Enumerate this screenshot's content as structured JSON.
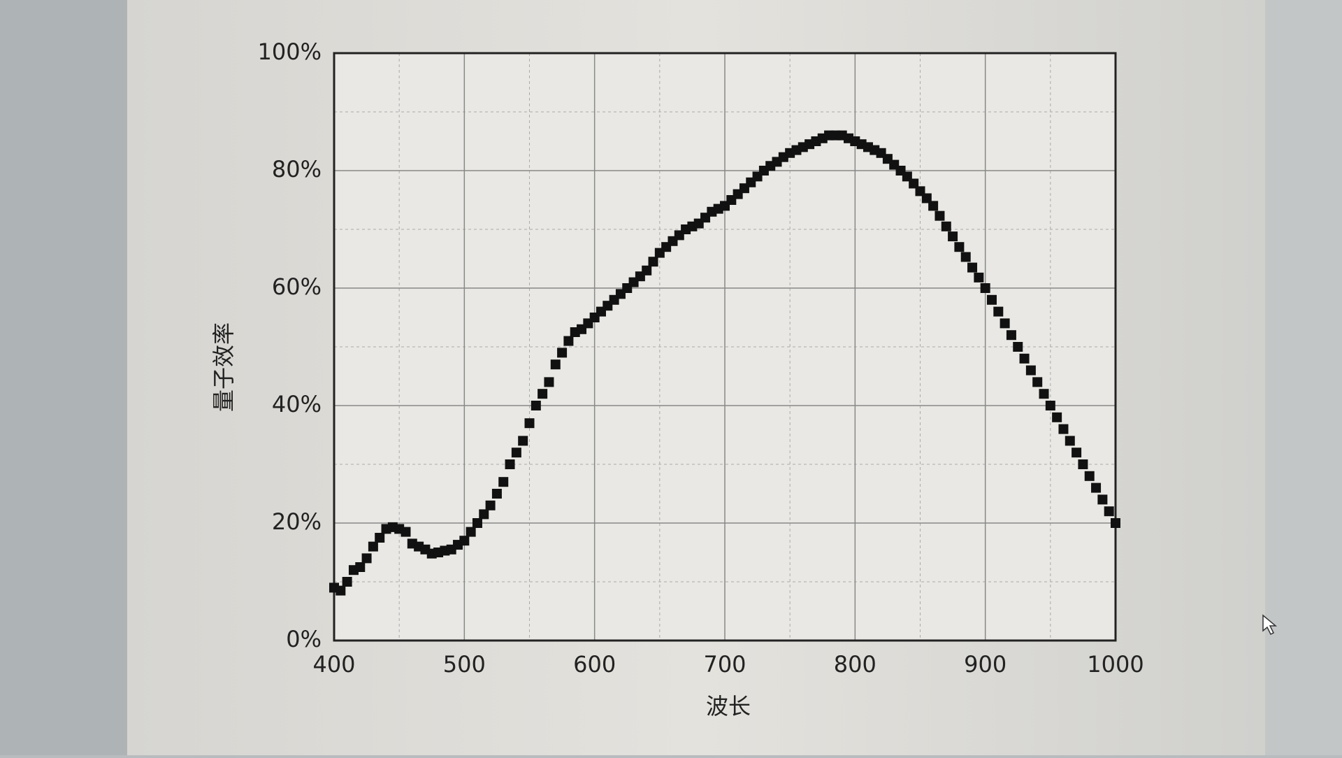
{
  "chart_data": {
    "type": "scatter",
    "x_label": "波长",
    "y_label": "量子效率",
    "x": [
      400,
      405,
      410,
      415,
      420,
      425,
      430,
      435,
      440,
      445,
      450,
      455,
      460,
      465,
      470,
      475,
      480,
      485,
      490,
      495,
      500,
      505,
      510,
      515,
      520,
      525,
      530,
      535,
      540,
      545,
      550,
      555,
      560,
      565,
      570,
      575,
      580,
      585,
      590,
      595,
      600,
      605,
      610,
      615,
      620,
      625,
      630,
      635,
      640,
      645,
      650,
      655,
      660,
      665,
      670,
      675,
      680,
      685,
      690,
      695,
      700,
      705,
      710,
      715,
      720,
      725,
      730,
      735,
      740,
      745,
      750,
      755,
      760,
      765,
      770,
      775,
      780,
      785,
      790,
      795,
      800,
      805,
      810,
      815,
      820,
      825,
      830,
      835,
      840,
      845,
      850,
      855,
      860,
      865,
      870,
      875,
      880,
      885,
      890,
      895,
      900,
      905,
      910,
      915,
      920,
      925,
      930,
      935,
      940,
      945,
      950,
      955,
      960,
      965,
      970,
      975,
      980,
      985,
      990,
      995,
      1000
    ],
    "values": [
      9,
      8.5,
      10,
      12,
      12.5,
      14,
      16,
      17.5,
      19,
      19.3,
      19,
      18.5,
      16.5,
      16,
      15.5,
      14.8,
      15,
      15.3,
      15.5,
      16.3,
      17,
      18.5,
      20,
      21.5,
      23,
      25,
      27,
      30,
      32,
      34,
      37,
      40,
      42,
      44,
      47,
      49,
      51,
      52.5,
      53,
      54,
      55,
      56,
      57,
      58,
      59,
      60,
      61,
      62,
      63,
      64.5,
      66,
      67,
      68,
      69,
      70,
      70.5,
      71,
      72,
      73,
      73.5,
      74,
      75,
      76,
      77,
      78,
      79,
      80,
      80.8,
      81.5,
      82.3,
      83,
      83.5,
      84,
      84.5,
      85,
      85.5,
      86,
      86,
      86,
      85.5,
      85,
      84.5,
      84,
      83.5,
      83,
      82,
      81,
      80,
      79,
      77.8,
      76.5,
      75.3,
      74,
      72.3,
      70.5,
      68.8,
      67,
      65.3,
      63.5,
      61.8,
      60,
      58,
      56,
      54,
      52,
      50,
      48,
      46,
      44,
      42,
      40,
      38,
      36,
      34,
      32,
      30,
      28,
      26,
      24,
      22,
      20
    ],
    "color": "#111111",
    "xlim": [
      400,
      1000
    ],
    "xticks": [
      400,
      500,
      600,
      700,
      800,
      900,
      1000
    ],
    "ylim": [
      0,
      100
    ],
    "yticks": [
      {
        "value": 0,
        "label": "0%"
      },
      {
        "value": 20,
        "label": "20%"
      },
      {
        "value": 40,
        "label": "40%"
      },
      {
        "value": 60,
        "label": "60%"
      },
      {
        "value": 80,
        "label": "80%"
      },
      {
        "value": 100,
        "label": "100%"
      }
    ],
    "grid": true
  }
}
